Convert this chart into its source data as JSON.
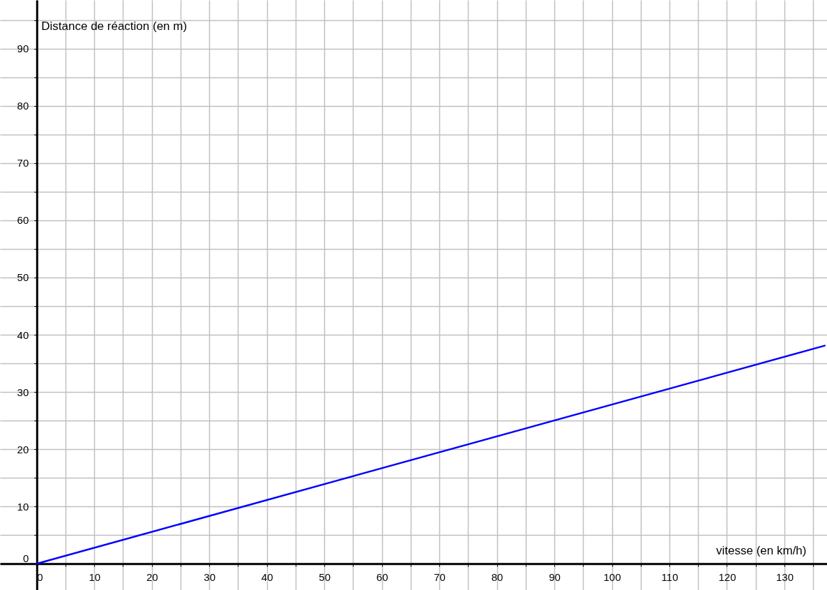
{
  "chart_data": {
    "type": "line",
    "xlabel": "vitesse (en km/h)",
    "ylabel": "Distance de réaction (en m)",
    "x": [
      0,
      137
    ],
    "series": [
      {
        "color": "#0000ff",
        "values": [
          0,
          38.1
        ]
      }
    ],
    "xlim": [
      -6.4,
      137.4
    ],
    "ylim": [
      -4.6,
      98.5
    ],
    "xticks": [
      0,
      {
        "value": 5,
        "label": null
      },
      10,
      {
        "value": 15,
        "label": null
      },
      20,
      {
        "value": 25,
        "label": null
      },
      30,
      {
        "value": 35,
        "label": null
      },
      40,
      {
        "value": 45,
        "label": null
      },
      50,
      {
        "value": 55,
        "label": null
      },
      60,
      {
        "value": 65,
        "label": null
      },
      70,
      {
        "value": 75,
        "label": null
      },
      80,
      {
        "value": 85,
        "label": null
      },
      90,
      {
        "value": 95,
        "label": null
      },
      100,
      {
        "value": 105,
        "label": null
      },
      110,
      {
        "value": 115,
        "label": null
      },
      120,
      {
        "value": 125,
        "label": null
      },
      130,
      {
        "value": 135,
        "label": null
      }
    ],
    "yticks": [
      0,
      {
        "value": 5,
        "label": null
      },
      10,
      {
        "value": 15,
        "label": null
      },
      20,
      {
        "value": 25,
        "label": null
      },
      30,
      {
        "value": 35,
        "label": null
      },
      40,
      {
        "value": 45,
        "label": null
      },
      50,
      {
        "value": 55,
        "label": null
      },
      60,
      {
        "value": 65,
        "label": null
      },
      70,
      {
        "value": 75,
        "label": null
      },
      80,
      {
        "value": 85,
        "label": null
      },
      90,
      {
        "value": 95,
        "label": null
      }
    ],
    "grid": true,
    "marker": "none",
    "line_style": "solid"
  }
}
